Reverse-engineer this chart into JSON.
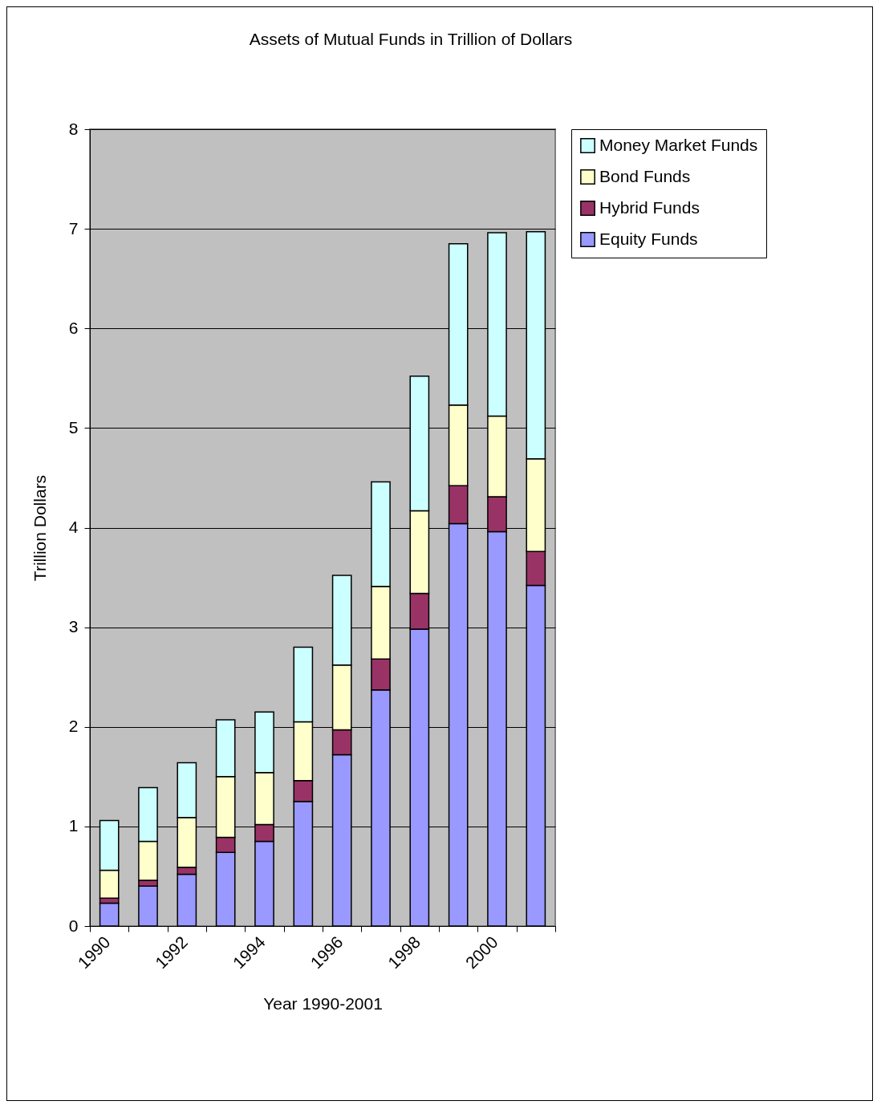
{
  "chart_data": {
    "type": "bar",
    "title": "Assets of Mutual Funds in Trillion of Dollars",
    "xlabel": "Year 1990-2001",
    "ylabel": "Trillion Dollars",
    "categories": [
      "1990",
      null,
      "1992",
      null,
      "1994",
      null,
      "1996",
      null,
      "1998",
      null,
      "2000",
      null
    ],
    "stacked": true,
    "series": [
      {
        "name": "Equity Funds",
        "color": "#9999ff",
        "values": [
          0.23,
          0.4,
          0.52,
          0.74,
          0.85,
          1.25,
          1.72,
          2.37,
          2.98,
          4.04,
          3.96,
          3.42
        ]
      },
      {
        "name": "Hybrid Funds",
        "color": "#993366",
        "values": [
          0.05,
          0.06,
          0.07,
          0.15,
          0.17,
          0.21,
          0.25,
          0.31,
          0.36,
          0.38,
          0.35,
          0.34
        ]
      },
      {
        "name": "Bond Funds",
        "color": "#ffffcc",
        "values": [
          0.28,
          0.39,
          0.5,
          0.61,
          0.52,
          0.59,
          0.65,
          0.73,
          0.83,
          0.81,
          0.81,
          0.93
        ]
      },
      {
        "name": "Money Market Funds",
        "color": "#ccffff",
        "values": [
          0.5,
          0.54,
          0.55,
          0.57,
          0.61,
          0.75,
          0.9,
          1.05,
          1.35,
          1.62,
          1.84,
          2.28
        ]
      }
    ],
    "ylim": [
      0,
      8
    ],
    "yticks": [
      0,
      1,
      2,
      3,
      4,
      5,
      6,
      7,
      8
    ],
    "grid": "y",
    "legend": "right"
  }
}
